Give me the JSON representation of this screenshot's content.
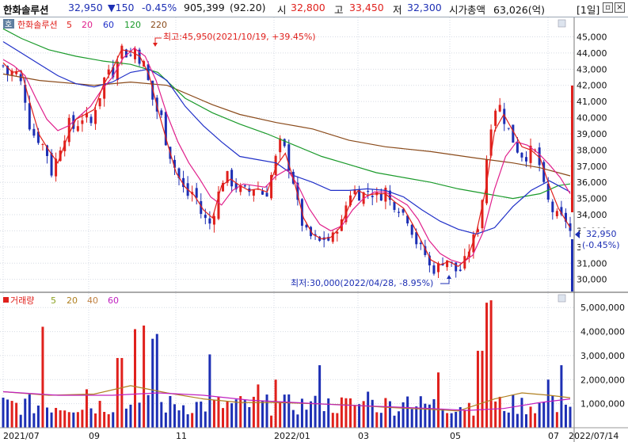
{
  "header": {
    "stock_name": "한화솔루션",
    "price": "32,950",
    "change": "▼150",
    "change_pct": "-0.45%",
    "volume": "905,399",
    "volume_ratio": "(92.20)",
    "open_label": "시",
    "open": "32,800",
    "high_label": "고",
    "high": "33,450",
    "low_label": "저",
    "low": "32,300",
    "mcap_label": "시가총액",
    "mcap": "63,026(억)",
    "period": "[1일]"
  },
  "colors": {
    "up": "#e0201c",
    "down": "#1d2fb4",
    "ma5": "#e0201c",
    "ma20": "#e0208c",
    "ma60": "#2030c8",
    "ma120": "#1a9a2a",
    "ma220": "#8a4a1a",
    "vma5": "#8aa020",
    "vma20": "#b08020",
    "vma40": "#c08040",
    "vma60": "#c020c0"
  },
  "price_panel": {
    "corner_label": "호",
    "legend": [
      {
        "text": "한화솔루션",
        "color": "#e0201c"
      },
      {
        "text": "5",
        "color": "#e0201c"
      },
      {
        "text": "20",
        "color": "#e0208c"
      },
      {
        "text": "60",
        "color": "#2030c8"
      },
      {
        "text": "120",
        "color": "#1a9a2a"
      },
      {
        "text": "220",
        "color": "#8a4a1a"
      }
    ],
    "high_annotation": "최고:45,950(2021/10/19, +39.45%)",
    "low_annotation": "최저:30,000(2022/04/28, -8.95%)",
    "price_tag": "32,950",
    "price_tag_pct": "(-0.45%)"
  },
  "volume_panel": {
    "legend": [
      {
        "text": "거래량",
        "color": "#e0201c"
      },
      {
        "text": "5",
        "color": "#8aa020"
      },
      {
        "text": "20",
        "color": "#b08020"
      },
      {
        "text": "40",
        "color": "#c08040"
      },
      {
        "text": "60",
        "color": "#c020c0"
      }
    ]
  },
  "date_label": "2022/07/14",
  "chart_data": {
    "type": "candlestick",
    "x_ticks": [
      "2021/07",
      "09",
      "11",
      "2022/01",
      "03",
      "05",
      "07"
    ],
    "price_axis": {
      "min": 29200,
      "max": 46200,
      "ticks": [
        30000,
        31000,
        32000,
        33000,
        34000,
        35000,
        36000,
        37000,
        38000,
        39000,
        40000,
        41000,
        42000,
        43000,
        44000,
        45000
      ]
    },
    "volume_axis": {
      "min": 0,
      "max": 5600000,
      "ticks": [
        1000000,
        2000000,
        3000000,
        4000000,
        5000000
      ]
    },
    "current_price": 32950,
    "high": {
      "value": 45950,
      "date": "2021/10/19",
      "pct": 39.45
    },
    "low": {
      "value": 30000,
      "date": "2022/04/28",
      "pct": -8.95
    },
    "close_path": [
      [
        0,
        43200
      ],
      [
        6,
        42600
      ],
      [
        12,
        43000
      ],
      [
        18,
        42400
      ],
      [
        24,
        41200
      ],
      [
        30,
        39200
      ],
      [
        36,
        38800
      ],
      [
        42,
        38500
      ],
      [
        48,
        37800
      ],
      [
        54,
        36400
      ],
      [
        60,
        37900
      ],
      [
        66,
        38600
      ],
      [
        72,
        39700
      ],
      [
        78,
        39300
      ],
      [
        84,
        39800
      ],
      [
        90,
        40200
      ],
      [
        96,
        39500
      ],
      [
        102,
        40800
      ],
      [
        108,
        41600
      ],
      [
        114,
        43200
      ],
      [
        120,
        42600
      ],
      [
        126,
        43900
      ],
      [
        132,
        44500
      ],
      [
        138,
        43500
      ],
      [
        144,
        44400
      ],
      [
        150,
        43600
      ],
      [
        156,
        43200
      ],
      [
        162,
        41500
      ],
      [
        168,
        40500
      ],
      [
        174,
        40000
      ],
      [
        180,
        38200
      ],
      [
        186,
        37300
      ],
      [
        192,
        36400
      ],
      [
        198,
        35600
      ],
      [
        204,
        35100
      ],
      [
        210,
        35600
      ],
      [
        216,
        34200
      ],
      [
        222,
        33700
      ],
      [
        228,
        33400
      ],
      [
        234,
        34700
      ],
      [
        240,
        36100
      ],
      [
        246,
        36400
      ],
      [
        252,
        35900
      ],
      [
        258,
        35600
      ],
      [
        264,
        35500
      ],
      [
        270,
        35400
      ],
      [
        276,
        35700
      ],
      [
        282,
        35600
      ],
      [
        288,
        35000
      ],
      [
        294,
        36300
      ],
      [
        300,
        37600
      ],
      [
        306,
        38800
      ],
      [
        312,
        37300
      ],
      [
        318,
        36300
      ],
      [
        324,
        34500
      ],
      [
        330,
        33100
      ],
      [
        336,
        32700
      ],
      [
        342,
        32500
      ],
      [
        348,
        32300
      ],
      [
        354,
        32600
      ],
      [
        360,
        32300
      ],
      [
        366,
        33200
      ],
      [
        372,
        33500
      ],
      [
        378,
        34900
      ],
      [
        384,
        35700
      ],
      [
        390,
        35200
      ],
      [
        396,
        35300
      ],
      [
        402,
        35500
      ],
      [
        408,
        35200
      ],
      [
        414,
        35100
      ],
      [
        420,
        35600
      ],
      [
        426,
        34700
      ],
      [
        432,
        34600
      ],
      [
        438,
        34200
      ],
      [
        444,
        33800
      ],
      [
        450,
        32900
      ],
      [
        456,
        32000
      ],
      [
        462,
        31800
      ],
      [
        468,
        30800
      ],
      [
        474,
        30600
      ],
      [
        480,
        30900
      ],
      [
        486,
        31400
      ],
      [
        492,
        30900
      ],
      [
        498,
        30500
      ],
      [
        504,
        30600
      ],
      [
        510,
        31600
      ],
      [
        516,
        32400
      ],
      [
        522,
        33400
      ],
      [
        528,
        35600
      ],
      [
        534,
        39100
      ],
      [
        540,
        40600
      ],
      [
        546,
        40700
      ],
      [
        552,
        39600
      ],
      [
        558,
        38900
      ],
      [
        564,
        38100
      ],
      [
        570,
        37700
      ],
      [
        576,
        37600
      ],
      [
        582,
        38200
      ],
      [
        588,
        37400
      ],
      [
        594,
        35700
      ],
      [
        600,
        34600
      ],
      [
        606,
        34000
      ],
      [
        612,
        33800
      ],
      [
        618,
        33700
      ],
      [
        623,
        32950
      ]
    ],
    "ma220_path": [
      [
        0,
        42700
      ],
      [
        40,
        42300
      ],
      [
        100,
        42000
      ],
      [
        140,
        42200
      ],
      [
        180,
        42000
      ],
      [
        230,
        40800
      ],
      [
        260,
        40200
      ],
      [
        300,
        39700
      ],
      [
        340,
        39300
      ],
      [
        380,
        38600
      ],
      [
        420,
        38200
      ],
      [
        470,
        37900
      ],
      [
        520,
        37500
      ],
      [
        560,
        37200
      ],
      [
        590,
        36900
      ],
      [
        610,
        36600
      ],
      [
        623,
        36400
      ]
    ],
    "ma120_path": [
      [
        0,
        45500
      ],
      [
        20,
        44900
      ],
      [
        50,
        44200
      ],
      [
        80,
        43800
      ],
      [
        110,
        43500
      ],
      [
        140,
        43300
      ],
      [
        170,
        42800
      ],
      [
        200,
        41200
      ],
      [
        230,
        40300
      ],
      [
        260,
        39600
      ],
      [
        290,
        39000
      ],
      [
        320,
        38300
      ],
      [
        350,
        37600
      ],
      [
        380,
        37100
      ],
      [
        410,
        36600
      ],
      [
        440,
        36300
      ],
      [
        470,
        36000
      ],
      [
        500,
        35600
      ],
      [
        530,
        35300
      ],
      [
        560,
        35000
      ],
      [
        590,
        35300
      ],
      [
        610,
        35800
      ],
      [
        623,
        35900
      ]
    ],
    "ma60_path": [
      [
        0,
        44700
      ],
      [
        20,
        44000
      ],
      [
        40,
        43300
      ],
      [
        60,
        42600
      ],
      [
        80,
        42100
      ],
      [
        100,
        41900
      ],
      [
        120,
        42200
      ],
      [
        140,
        42800
      ],
      [
        160,
        43000
      ],
      [
        180,
        42300
      ],
      [
        200,
        40700
      ],
      [
        220,
        39500
      ],
      [
        240,
        38500
      ],
      [
        260,
        37600
      ],
      [
        280,
        37400
      ],
      [
        300,
        37200
      ],
      [
        320,
        36400
      ],
      [
        340,
        36000
      ],
      [
        360,
        35500
      ],
      [
        380,
        35500
      ],
      [
        400,
        35600
      ],
      [
        420,
        35500
      ],
      [
        440,
        35100
      ],
      [
        460,
        34300
      ],
      [
        480,
        33600
      ],
      [
        500,
        33100
      ],
      [
        520,
        32800
      ],
      [
        540,
        33200
      ],
      [
        560,
        34500
      ],
      [
        580,
        35500
      ],
      [
        600,
        36100
      ],
      [
        610,
        35800
      ],
      [
        623,
        35400
      ]
    ],
    "ma20_path": [
      [
        0,
        43600
      ],
      [
        12,
        43200
      ],
      [
        24,
        42600
      ],
      [
        36,
        41200
      ],
      [
        48,
        39900
      ],
      [
        60,
        39200
      ],
      [
        72,
        39500
      ],
      [
        84,
        40100
      ],
      [
        96,
        40700
      ],
      [
        108,
        41700
      ],
      [
        120,
        42500
      ],
      [
        132,
        43700
      ],
      [
        144,
        44300
      ],
      [
        156,
        43800
      ],
      [
        168,
        42300
      ],
      [
        180,
        40200
      ],
      [
        192,
        38500
      ],
      [
        204,
        37200
      ],
      [
        216,
        36200
      ],
      [
        228,
        35100
      ],
      [
        240,
        34600
      ],
      [
        252,
        35500
      ],
      [
        264,
        35900
      ],
      [
        276,
        35800
      ],
      [
        288,
        35700
      ],
      [
        300,
        36400
      ],
      [
        312,
        36800
      ],
      [
        324,
        35800
      ],
      [
        336,
        34400
      ],
      [
        348,
        33400
      ],
      [
        360,
        33000
      ],
      [
        372,
        33300
      ],
      [
        384,
        34300
      ],
      [
        396,
        35000
      ],
      [
        408,
        35400
      ],
      [
        420,
        35400
      ],
      [
        432,
        35000
      ],
      [
        444,
        34600
      ],
      [
        456,
        33700
      ],
      [
        468,
        32400
      ],
      [
        480,
        31600
      ],
      [
        492,
        31200
      ],
      [
        504,
        31000
      ],
      [
        516,
        31500
      ],
      [
        528,
        33000
      ],
      [
        540,
        35600
      ],
      [
        552,
        37600
      ],
      [
        564,
        38500
      ],
      [
        576,
        38300
      ],
      [
        588,
        37800
      ],
      [
        600,
        37100
      ],
      [
        612,
        36300
      ],
      [
        623,
        35300
      ]
    ],
    "ma5_path": [
      [
        0,
        43400
      ],
      [
        10,
        42800
      ],
      [
        20,
        42900
      ],
      [
        30,
        40800
      ],
      [
        40,
        38900
      ],
      [
        50,
        38000
      ],
      [
        60,
        37200
      ],
      [
        70,
        38700
      ],
      [
        80,
        39900
      ],
      [
        90,
        40200
      ],
      [
        100,
        40500
      ],
      [
        110,
        42000
      ],
      [
        120,
        43000
      ],
      [
        130,
        44200
      ],
      [
        140,
        44100
      ],
      [
        150,
        43800
      ],
      [
        160,
        42700
      ],
      [
        170,
        40500
      ],
      [
        180,
        38500
      ],
      [
        190,
        36600
      ],
      [
        200,
        35700
      ],
      [
        210,
        35200
      ],
      [
        220,
        34300
      ],
      [
        230,
        33800
      ],
      [
        240,
        35800
      ],
      [
        250,
        36200
      ],
      [
        260,
        35800
      ],
      [
        270,
        35500
      ],
      [
        280,
        35600
      ],
      [
        290,
        35400
      ],
      [
        300,
        37000
      ],
      [
        310,
        37800
      ],
      [
        320,
        36000
      ],
      [
        330,
        33800
      ],
      [
        340,
        32800
      ],
      [
        350,
        32500
      ],
      [
        360,
        32600
      ],
      [
        370,
        33200
      ],
      [
        380,
        34500
      ],
      [
        390,
        35500
      ],
      [
        400,
        35200
      ],
      [
        410,
        35300
      ],
      [
        420,
        35300
      ],
      [
        430,
        34800
      ],
      [
        440,
        34400
      ],
      [
        450,
        33400
      ],
      [
        460,
        32300
      ],
      [
        470,
        31200
      ],
      [
        480,
        30900
      ],
      [
        490,
        31100
      ],
      [
        500,
        30800
      ],
      [
        510,
        31300
      ],
      [
        520,
        32900
      ],
      [
        530,
        35500
      ],
      [
        540,
        39200
      ],
      [
        550,
        40200
      ],
      [
        560,
        39200
      ],
      [
        570,
        38200
      ],
      [
        580,
        38000
      ],
      [
        590,
        37500
      ],
      [
        600,
        35800
      ],
      [
        610,
        34400
      ],
      [
        623,
        33200
      ]
    ],
    "volume_ma20_path": [
      [
        0,
        1500000
      ],
      [
        50,
        1350000
      ],
      [
        100,
        1400000
      ],
      [
        140,
        1750000
      ],
      [
        180,
        1450000
      ],
      [
        220,
        1200000
      ],
      [
        260,
        1050000
      ],
      [
        300,
        1050000
      ],
      [
        340,
        1000000
      ],
      [
        380,
        950000
      ],
      [
        420,
        850000
      ],
      [
        460,
        780000
      ],
      [
        500,
        700000
      ],
      [
        540,
        1200000
      ],
      [
        570,
        1450000
      ],
      [
        600,
        1350000
      ],
      [
        623,
        1250000
      ]
    ],
    "volume_ma60_path": [
      [
        0,
        1500000
      ],
      [
        60,
        1350000
      ],
      [
        120,
        1350000
      ],
      [
        170,
        1450000
      ],
      [
        220,
        1350000
      ],
      [
        270,
        1150000
      ],
      [
        320,
        1050000
      ],
      [
        370,
        950000
      ],
      [
        420,
        880000
      ],
      [
        470,
        800000
      ],
      [
        510,
        720000
      ],
      [
        550,
        800000
      ],
      [
        590,
        1050000
      ],
      [
        623,
        1200000
      ]
    ],
    "volume_spikes": [
      [
        44,
        4200000
      ],
      [
        94,
        1600000
      ],
      [
        128,
        2900000
      ],
      [
        146,
        4100000
      ],
      [
        156,
        4250000
      ],
      [
        162,
        3700000
      ],
      [
        170,
        3900000
      ],
      [
        228,
        3050000
      ],
      [
        282,
        1800000
      ],
      [
        300,
        2000000
      ],
      [
        348,
        2600000
      ],
      [
        402,
        1500000
      ],
      [
        446,
        1300000
      ],
      [
        478,
        2300000
      ],
      [
        524,
        3200000
      ],
      [
        532,
        5200000
      ],
      [
        537,
        5300000
      ],
      [
        600,
        2000000
      ],
      [
        612,
        2600000
      ]
    ]
  }
}
